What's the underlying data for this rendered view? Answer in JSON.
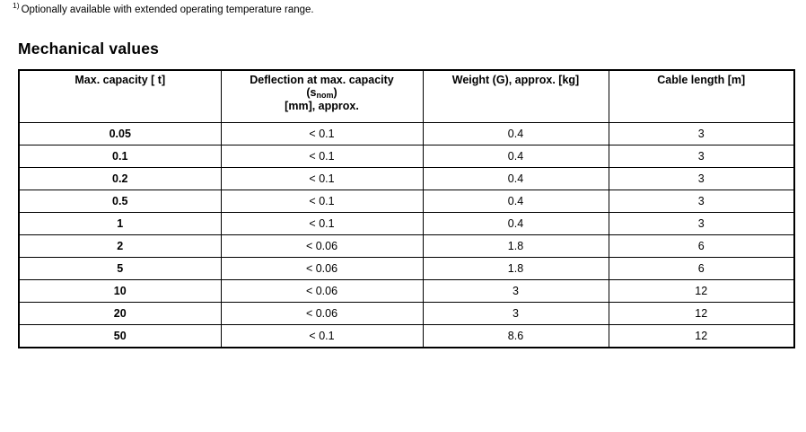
{
  "footnote": {
    "marker": "1)",
    "text": "Optionally available with extended operating temperature range."
  },
  "section": {
    "title": "Mechanical values"
  },
  "table": {
    "col1_header": "Max. capacity [ t]",
    "deflection_header": {
      "line1": "Deflection at max. capacity",
      "sub_open": "(s",
      "sub_text": "nom",
      "sub_close": ")",
      "line3": "[mm], approx."
    },
    "col3_header": "Weight (G), approx. [kg]",
    "col4_header": "Cable length [m]",
    "rows": [
      {
        "capacity": "0.05",
        "deflection": "< 0.1",
        "weight": "0.4",
        "cable_length": "3"
      },
      {
        "capacity": "0.1",
        "deflection": "< 0.1",
        "weight": "0.4",
        "cable_length": "3"
      },
      {
        "capacity": "0.2",
        "deflection": "< 0.1",
        "weight": "0.4",
        "cable_length": "3"
      },
      {
        "capacity": "0.5",
        "deflection": "< 0.1",
        "weight": "0.4",
        "cable_length": "3"
      },
      {
        "capacity": "1",
        "deflection": "< 0.1",
        "weight": "0.4",
        "cable_length": "3"
      },
      {
        "capacity": "2",
        "deflection": "< 0.06",
        "weight": "1.8",
        "cable_length": "6"
      },
      {
        "capacity": "5",
        "deflection": "< 0.06",
        "weight": "1.8",
        "cable_length": "6"
      },
      {
        "capacity": "10",
        "deflection": "< 0.06",
        "weight": "3",
        "cable_length": "12"
      },
      {
        "capacity": "20",
        "deflection": "< 0.06",
        "weight": "3",
        "cable_length": "12"
      },
      {
        "capacity": "50",
        "deflection": "< 0.1",
        "weight": "8.6",
        "cable_length": "12"
      }
    ]
  }
}
